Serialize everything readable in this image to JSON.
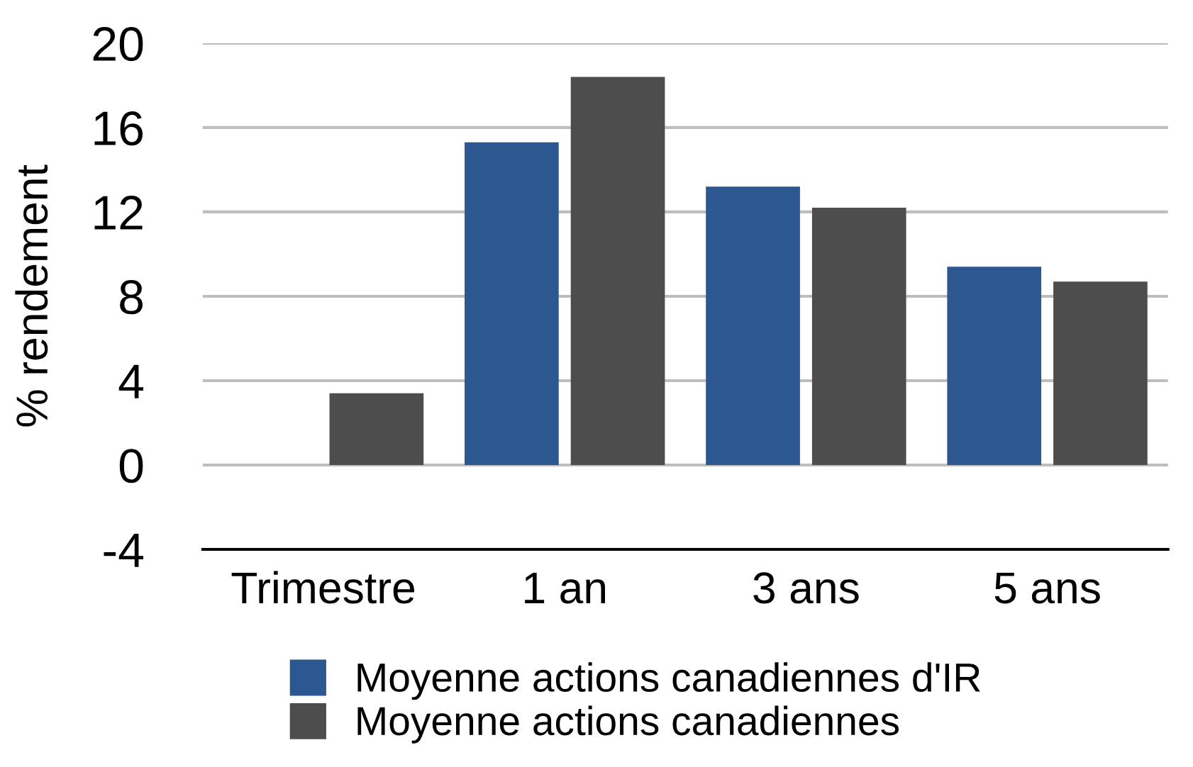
{
  "chart_data": {
    "type": "bar",
    "ylabel": "% rendement",
    "categories": [
      "Trimestre",
      "1 an",
      "3 ans",
      "5 ans"
    ],
    "series": [
      {
        "name": "Moyenne actions canadiennes d'IR",
        "color": "#2c5790",
        "values": [
          null,
          15.3,
          13.2,
          9.4
        ]
      },
      {
        "name": "Moyenne actions canadiennes",
        "color": "#4d4d4d",
        "values": [
          3.4,
          18.4,
          12.2,
          8.7
        ]
      }
    ],
    "ylim": [
      -4,
      20
    ],
    "yticks": [
      -4,
      0,
      4,
      8,
      12,
      16,
      20
    ],
    "grid": "y",
    "legend": "bottom"
  }
}
